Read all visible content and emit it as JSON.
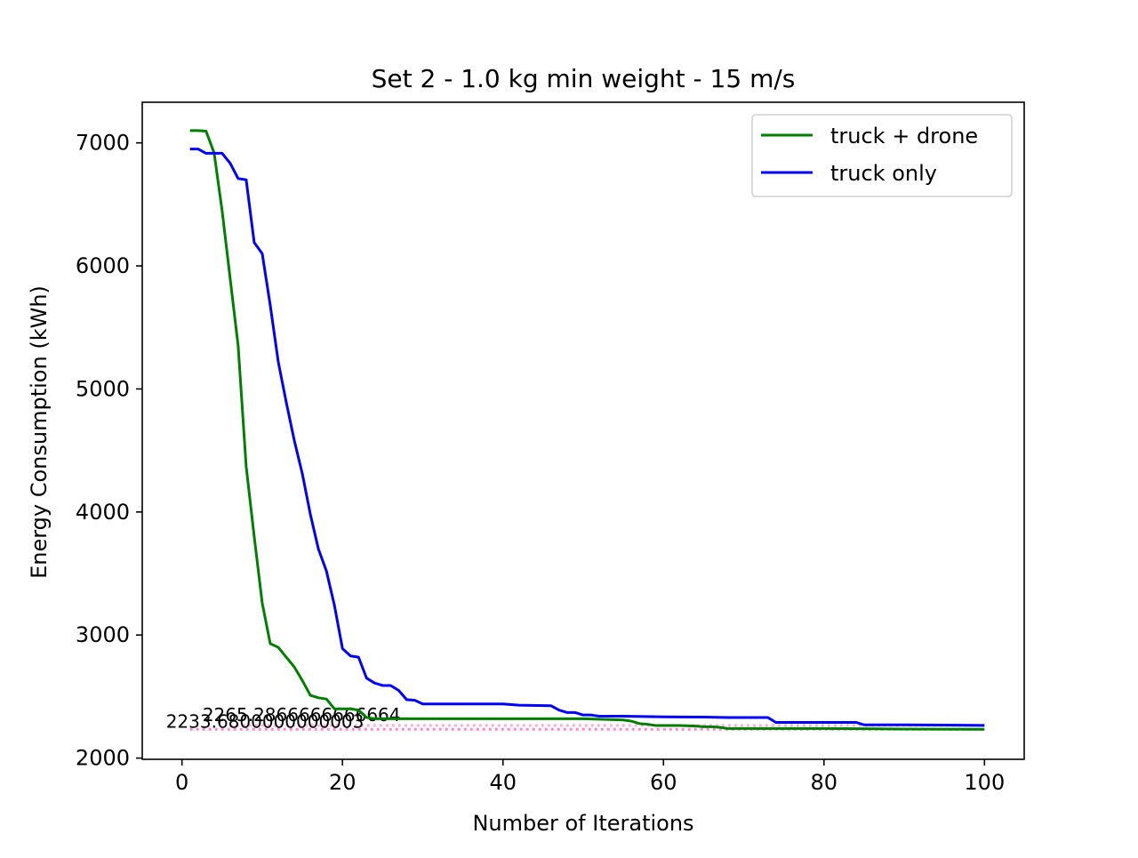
{
  "chart_data": {
    "type": "line",
    "title": "Set 2 - 1.0 kg min weight - 15 m/s",
    "xlabel": "Number of Iterations",
    "ylabel": "Energy Consumption (kWh)",
    "xlim": [
      -4.95,
      104.95
    ],
    "ylim": [
      1990,
      7330
    ],
    "xticks": [
      0,
      20,
      40,
      60,
      80,
      100
    ],
    "yticks": [
      2000,
      3000,
      4000,
      5000,
      6000,
      7000
    ],
    "grid": false,
    "legend_position": "top-right",
    "series": [
      {
        "name": "truck + drone",
        "color": "#008000",
        "x": [
          1,
          2,
          3,
          4,
          5,
          6,
          7,
          8,
          9,
          10,
          11,
          12,
          13,
          14,
          15,
          16,
          17,
          18,
          19,
          20,
          21,
          22,
          23,
          24,
          25,
          26,
          27,
          28,
          29,
          30,
          35,
          40,
          45,
          50,
          55,
          56,
          57,
          58,
          59,
          60,
          62,
          64,
          65,
          66,
          67,
          68,
          70,
          75,
          80,
          85,
          90,
          95,
          100
        ],
        "y": [
          7100,
          7100,
          7095,
          6920,
          6450,
          5900,
          5350,
          4370,
          3800,
          3260,
          2930,
          2900,
          2820,
          2740,
          2630,
          2510,
          2490,
          2480,
          2400,
          2400,
          2400,
          2390,
          2330,
          2320,
          2320,
          2320,
          2320,
          2320,
          2320,
          2320,
          2320,
          2320,
          2320,
          2320,
          2310,
          2300,
          2280,
          2275,
          2265,
          2265,
          2265,
          2260,
          2255,
          2255,
          2250,
          2240,
          2240,
          2240,
          2240,
          2238,
          2236,
          2235,
          2233.68
        ]
      },
      {
        "name": "truck only",
        "color": "#0000ff",
        "x": [
          1,
          2,
          3,
          4,
          5,
          6,
          7,
          8,
          9,
          10,
          11,
          12,
          13,
          14,
          15,
          16,
          17,
          18,
          19,
          20,
          21,
          22,
          23,
          24,
          25,
          26,
          27,
          28,
          29,
          30,
          35,
          40,
          42,
          46,
          47,
          48,
          49,
          50,
          51,
          52,
          55,
          60,
          65,
          68,
          70,
          73,
          74,
          75,
          80,
          84,
          85,
          90,
          95,
          100
        ],
        "y": [
          6950,
          6950,
          6915,
          6915,
          6915,
          6835,
          6710,
          6700,
          6190,
          6100,
          5680,
          5220,
          4890,
          4580,
          4310,
          3980,
          3700,
          3520,
          3240,
          2890,
          2830,
          2820,
          2650,
          2610,
          2590,
          2590,
          2550,
          2475,
          2470,
          2440,
          2440,
          2440,
          2430,
          2425,
          2390,
          2370,
          2370,
          2350,
          2350,
          2340,
          2340,
          2335,
          2333,
          2330,
          2330,
          2330,
          2290,
          2290,
          2290,
          2290,
          2270,
          2270,
          2268,
          2265.29
        ]
      }
    ],
    "annotations": [
      {
        "text": "2233.6800000000003",
        "x": 1,
        "y": 2233.68,
        "line_color": "#ff66cc"
      },
      {
        "text": "2265.2866666666664",
        "x": 6,
        "y": 2265.29,
        "line_color": "#ff99cc"
      }
    ]
  }
}
